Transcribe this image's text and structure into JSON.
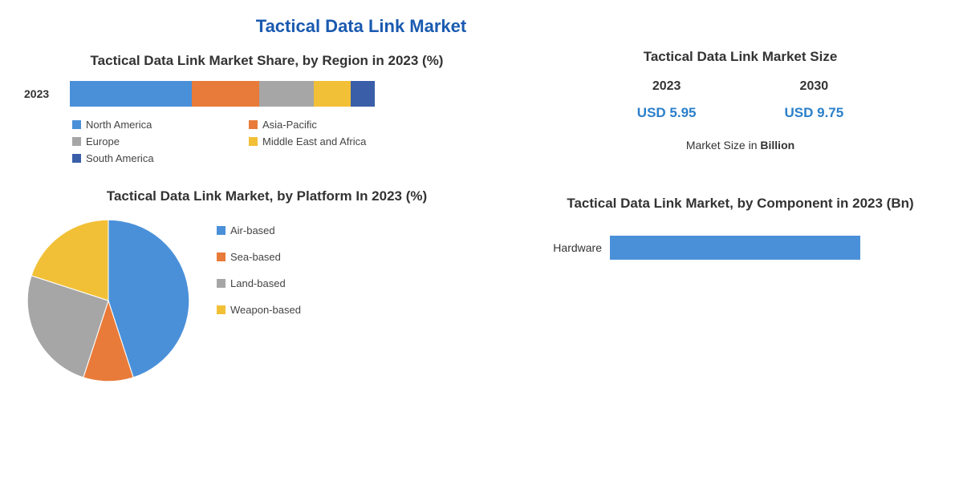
{
  "main_title": "Tactical Data Link Market",
  "stacked": {
    "title": "Tactical Data Link Market Share, by Region in 2023 (%)",
    "year": "2023",
    "segments": [
      {
        "label": "North America",
        "value": 40,
        "color": "#4a90d9"
      },
      {
        "label": "Asia-Pacific",
        "value": 22,
        "color": "#e87b3a"
      },
      {
        "label": "Europe",
        "value": 18,
        "color": "#a6a6a6"
      },
      {
        "label": "Middle East and Africa",
        "value": 12,
        "color": "#f2c037"
      },
      {
        "label": "South America",
        "value": 8,
        "color": "#3a5ea8"
      }
    ]
  },
  "pie": {
    "title": "Tactical Data Link Market, by Platform In 2023 (%)",
    "slices": [
      {
        "label": "Air-based",
        "value": 45,
        "color": "#4a90d9"
      },
      {
        "label": "Sea-based",
        "value": 10,
        "color": "#e87b3a"
      },
      {
        "label": "Land-based",
        "value": 25,
        "color": "#a6a6a6"
      },
      {
        "label": "Weapon-based",
        "value": 20,
        "color": "#f2c037"
      }
    ]
  },
  "market_size": {
    "title": "Tactical Data Link Market Size",
    "left": {
      "year": "2023",
      "value": "USD 5.95"
    },
    "right": {
      "year": "2030",
      "value": "USD 9.75"
    },
    "unit_prefix": "Market Size in ",
    "unit_bold": "Billion",
    "value_color": "#2a7fc9"
  },
  "component": {
    "title": "Tactical Data Link Market, by Component in 2023 (Bn)",
    "rows": [
      {
        "label": "Hardware",
        "value": 3.8,
        "max": 5.0,
        "color": "#4a90d9"
      }
    ]
  },
  "style": {
    "background": "#ffffff",
    "title_color": "#1a5ab0",
    "text_color": "#333333",
    "title_fontsize": 22,
    "section_title_fontsize": 17,
    "body_fontsize": 14
  }
}
